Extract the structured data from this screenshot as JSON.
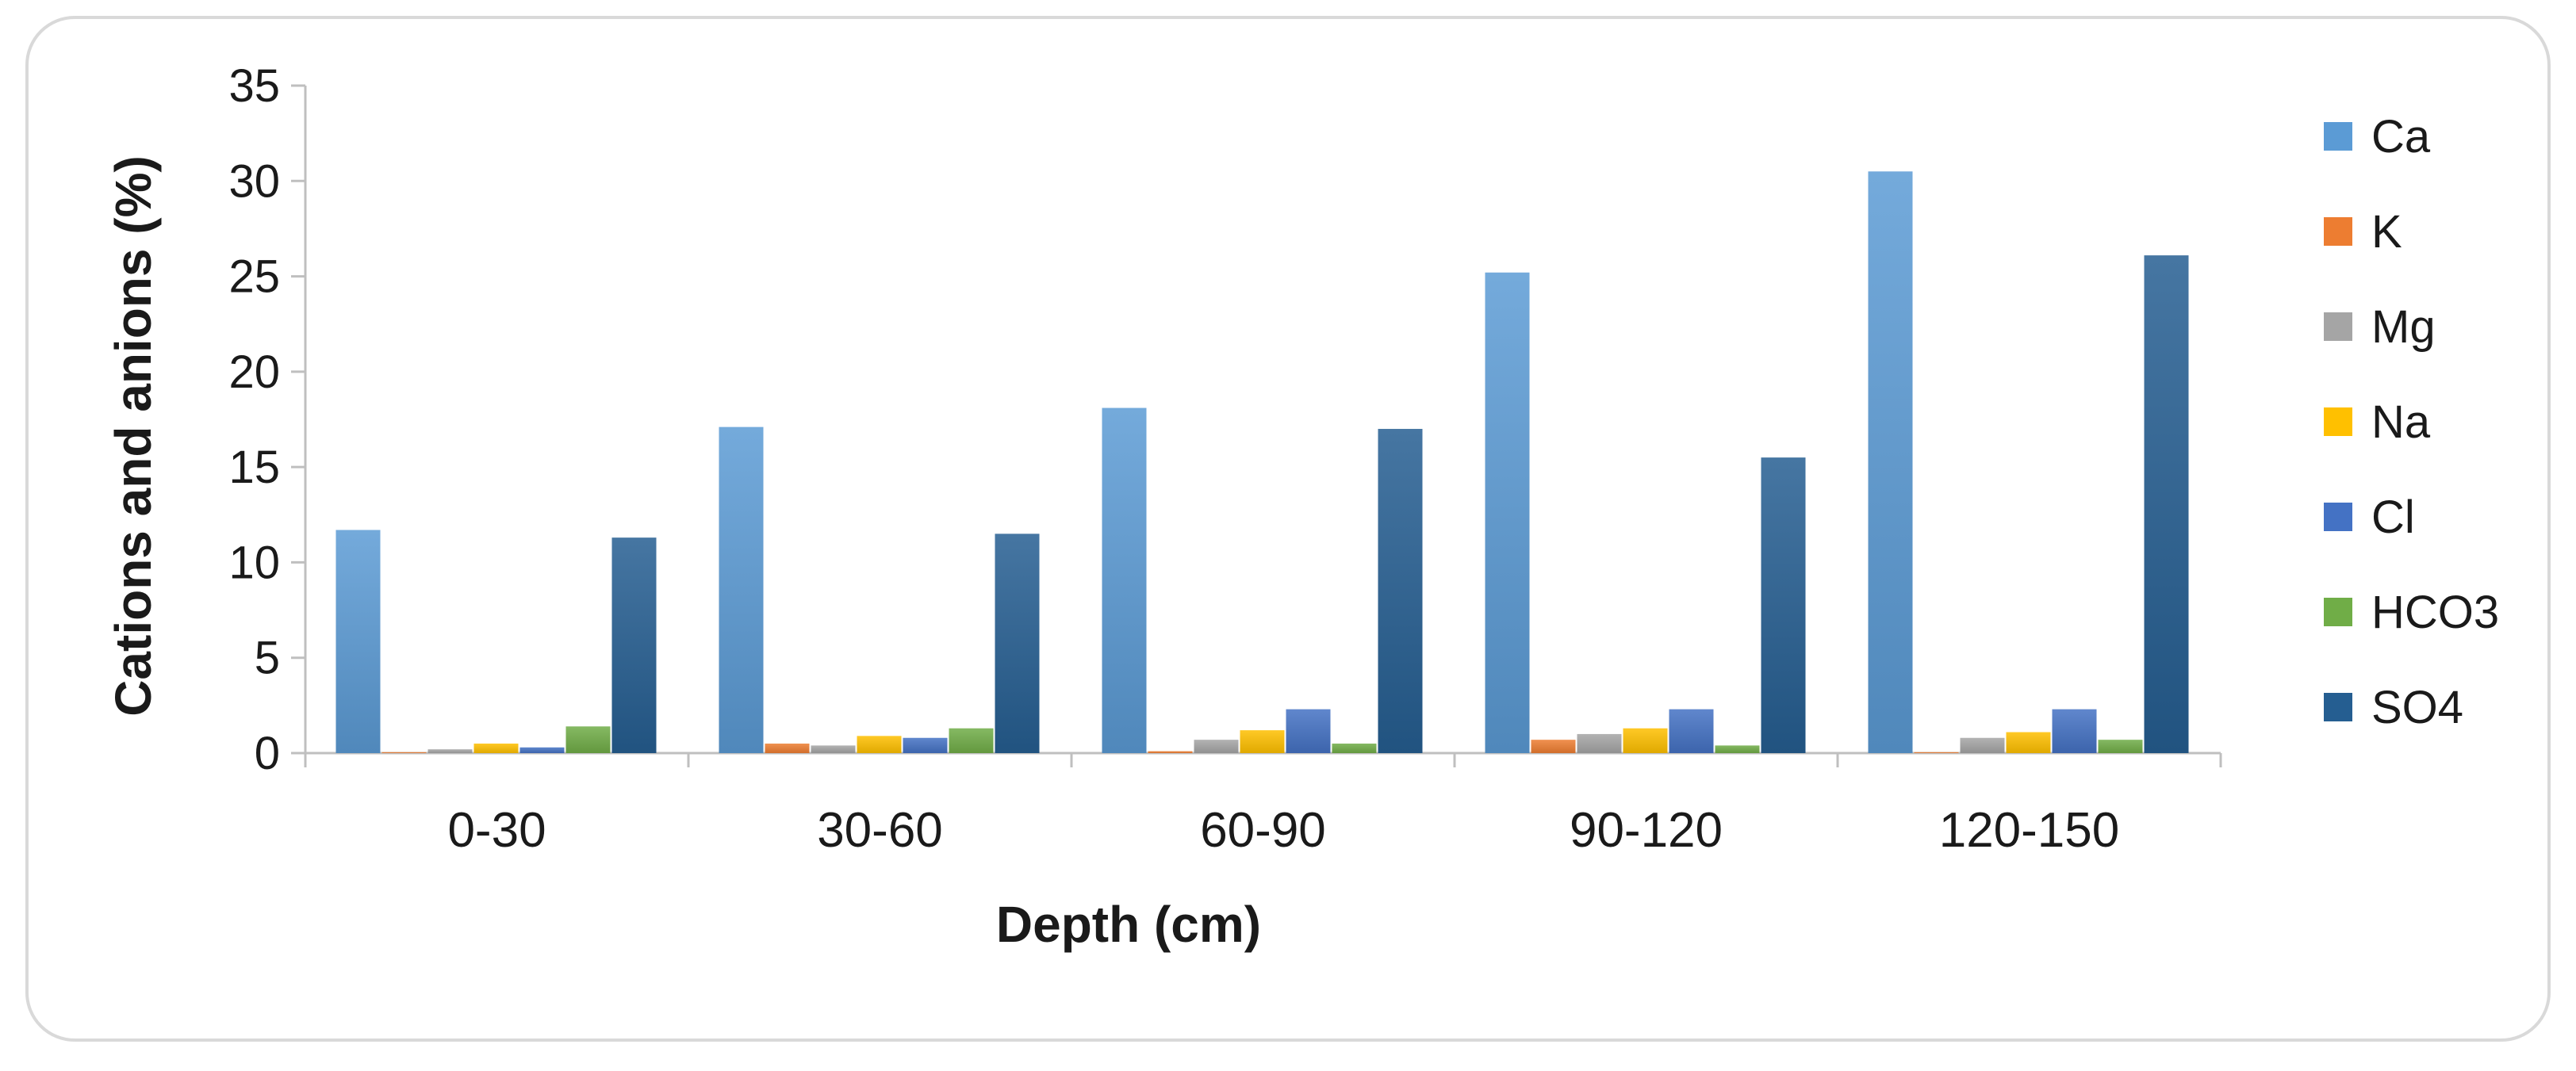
{
  "chart_data": {
    "type": "bar",
    "title": "",
    "xlabel": "Depth (cm)",
    "ylabel": "Cations and anions (%)",
    "ylim": [
      0,
      35
    ],
    "yticks": [
      0,
      5,
      10,
      15,
      20,
      25,
      30,
      35
    ],
    "grid": false,
    "legend_position": "right",
    "categories": [
      "0-30",
      "30-60",
      "60-90",
      "90-120",
      "120-150"
    ],
    "series": [
      {
        "name": "Ca",
        "color": "#5B9BD5",
        "values": [
          11.7,
          17.1,
          18.1,
          25.2,
          30.5
        ]
      },
      {
        "name": "K",
        "color": "#ED7D31",
        "values": [
          0.05,
          0.5,
          0.1,
          0.7,
          0.05
        ]
      },
      {
        "name": "Mg",
        "color": "#A5A5A5",
        "values": [
          0.2,
          0.4,
          0.7,
          1.0,
          0.8
        ]
      },
      {
        "name": "Na",
        "color": "#FFC000",
        "values": [
          0.5,
          0.9,
          1.2,
          1.3,
          1.1
        ]
      },
      {
        "name": "Cl",
        "color": "#4472C4",
        "values": [
          0.3,
          0.8,
          2.3,
          2.3,
          2.3
        ]
      },
      {
        "name": "HCO3",
        "color": "#70AD47",
        "values": [
          1.4,
          1.3,
          0.5,
          0.4,
          0.7
        ]
      },
      {
        "name": "SO4",
        "color": "#255E91",
        "values": [
          11.3,
          11.5,
          17.0,
          15.5,
          26.1
        ]
      }
    ]
  }
}
